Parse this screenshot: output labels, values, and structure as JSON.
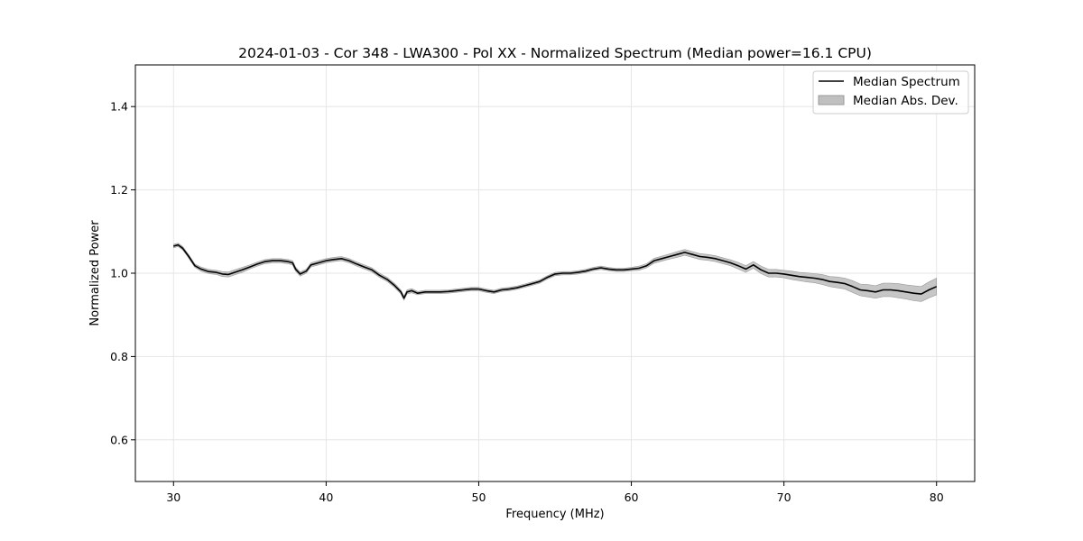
{
  "chart_data": {
    "type": "line",
    "title": "2024-01-03 - Cor 348 - LWA300 - Pol XX - Normalized Spectrum (Median power=16.1 CPU)",
    "xlabel": "Frequency (MHz)",
    "ylabel": "Normalized Power",
    "xlim": [
      27.5,
      82.5
    ],
    "ylim": [
      0.5,
      1.5
    ],
    "xticks": [
      30,
      40,
      50,
      60,
      70,
      80
    ],
    "yticks": [
      0.6,
      0.8,
      1.0,
      1.2,
      1.4
    ],
    "grid": true,
    "legend_position": "top-right",
    "colors": {
      "line": "#000000",
      "band": "#c0c0c0",
      "band_edge": "#9a9a9a",
      "grid": "#e6e6e6"
    },
    "series": [
      {
        "name": "Median Spectrum",
        "kind": "line",
        "x": [
          30.0,
          30.3,
          30.6,
          31.0,
          31.4,
          31.8,
          32.3,
          32.8,
          33.2,
          33.6,
          34.0,
          34.5,
          35.0,
          35.5,
          36.0,
          36.5,
          37.0,
          37.5,
          37.8,
          38.0,
          38.3,
          38.7,
          39.0,
          39.5,
          40.0,
          40.5,
          41.0,
          41.5,
          42.0,
          42.5,
          43.0,
          43.5,
          44.0,
          44.5,
          44.9,
          45.1,
          45.3,
          45.6,
          46.0,
          46.5,
          47.0,
          47.5,
          48.0,
          48.5,
          49.0,
          49.5,
          50.0,
          50.5,
          51.0,
          51.5,
          52.0,
          52.5,
          53.0,
          53.5,
          54.0,
          54.5,
          55.0,
          55.5,
          56.0,
          56.5,
          57.0,
          57.5,
          58.0,
          58.5,
          59.0,
          59.5,
          60.0,
          60.5,
          61.0,
          61.5,
          62.0,
          62.5,
          63.0,
          63.5,
          64.0,
          64.5,
          65.0,
          65.5,
          66.0,
          66.5,
          67.0,
          67.5,
          68.0,
          68.5,
          69.0,
          69.5,
          70.0,
          70.5,
          71.0,
          71.5,
          72.0,
          72.5,
          73.0,
          73.5,
          74.0,
          74.5,
          75.0,
          75.5,
          76.0,
          76.5,
          77.0,
          77.5,
          78.0,
          78.5,
          79.0,
          79.5,
          80.0
        ],
        "y": [
          1.065,
          1.068,
          1.06,
          1.04,
          1.018,
          1.01,
          1.004,
          1.002,
          0.998,
          0.997,
          1.002,
          1.008,
          1.015,
          1.022,
          1.028,
          1.03,
          1.03,
          1.028,
          1.025,
          1.01,
          0.998,
          1.005,
          1.02,
          1.025,
          1.03,
          1.033,
          1.035,
          1.03,
          1.022,
          1.015,
          1.008,
          0.995,
          0.985,
          0.97,
          0.955,
          0.94,
          0.955,
          0.958,
          0.952,
          0.955,
          0.955,
          0.955,
          0.956,
          0.958,
          0.96,
          0.962,
          0.962,
          0.958,
          0.955,
          0.96,
          0.962,
          0.965,
          0.97,
          0.975,
          0.98,
          0.99,
          0.998,
          1.0,
          1.0,
          1.002,
          1.005,
          1.01,
          1.013,
          1.01,
          1.008,
          1.008,
          1.01,
          1.012,
          1.018,
          1.03,
          1.035,
          1.04,
          1.045,
          1.05,
          1.045,
          1.04,
          1.038,
          1.035,
          1.03,
          1.025,
          1.018,
          1.01,
          1.02,
          1.008,
          1.0,
          1.0,
          0.998,
          0.995,
          0.992,
          0.99,
          0.988,
          0.985,
          0.98,
          0.978,
          0.975,
          0.968,
          0.96,
          0.958,
          0.955,
          0.96,
          0.96,
          0.958,
          0.955,
          0.952,
          0.95,
          0.96,
          0.968
        ]
      },
      {
        "name": "Median Abs. Dev.",
        "kind": "band",
        "half_width": [
          0.004,
          0.004,
          0.004,
          0.004,
          0.004,
          0.005,
          0.005,
          0.005,
          0.006,
          0.006,
          0.006,
          0.006,
          0.005,
          0.005,
          0.005,
          0.005,
          0.005,
          0.005,
          0.005,
          0.005,
          0.005,
          0.005,
          0.005,
          0.005,
          0.005,
          0.005,
          0.005,
          0.005,
          0.005,
          0.005,
          0.005,
          0.005,
          0.005,
          0.005,
          0.005,
          0.005,
          0.005,
          0.005,
          0.004,
          0.004,
          0.004,
          0.004,
          0.004,
          0.004,
          0.004,
          0.004,
          0.004,
          0.004,
          0.004,
          0.004,
          0.004,
          0.004,
          0.004,
          0.004,
          0.004,
          0.004,
          0.004,
          0.004,
          0.004,
          0.004,
          0.004,
          0.004,
          0.004,
          0.004,
          0.004,
          0.004,
          0.004,
          0.005,
          0.005,
          0.006,
          0.006,
          0.006,
          0.007,
          0.007,
          0.007,
          0.007,
          0.007,
          0.007,
          0.007,
          0.007,
          0.008,
          0.008,
          0.008,
          0.009,
          0.009,
          0.009,
          0.009,
          0.01,
          0.01,
          0.011,
          0.011,
          0.012,
          0.012,
          0.013,
          0.013,
          0.014,
          0.014,
          0.015,
          0.015,
          0.016,
          0.016,
          0.017,
          0.017,
          0.018,
          0.018,
          0.019,
          0.02
        ]
      }
    ]
  }
}
